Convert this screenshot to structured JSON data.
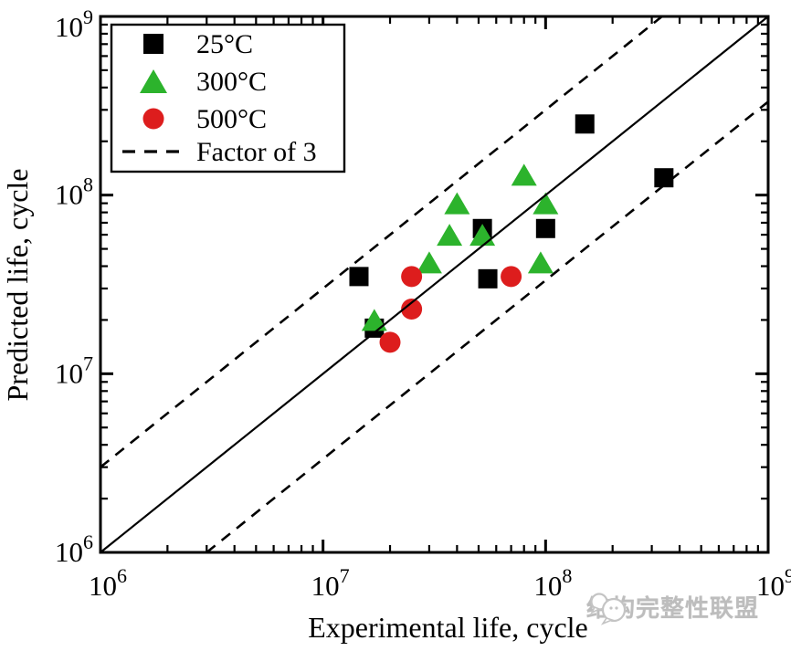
{
  "watermark": {
    "text": "结构完整性联盟",
    "icon": "speech-bubbles-logo",
    "color": "#bdbdbd"
  },
  "chart_data": {
    "type": "scatter",
    "title": "",
    "xlabel": "Experimental life, cycle",
    "ylabel": "Predicted life, cycle",
    "x_scale": "log",
    "y_scale": "log",
    "xlim": [
      1000000.0,
      1000000000.0
    ],
    "ylim": [
      1000000.0,
      1000000000.0
    ],
    "x_tick_labels": [
      "10⁶",
      "10⁷",
      "10⁸",
      "10⁹"
    ],
    "y_tick_labels": [
      "10⁶",
      "10⁷",
      "10⁸",
      "10⁹"
    ],
    "tick_exponents": [
      6,
      7,
      8,
      9
    ],
    "grid": false,
    "frame": "full-box-with-inward-ticks",
    "colors": {
      "series_25C": "#000000",
      "series_300C": "#2cb32c",
      "series_500C": "#dd1d1d",
      "lines": "#000000"
    },
    "series": [
      {
        "name": "25°C",
        "marker": "square",
        "color": "#000000",
        "points": [
          [
            14500000.0,
            35000000.0
          ],
          [
            17000000.0,
            18000000.0
          ],
          [
            52000000.0,
            65000000.0
          ],
          [
            55000000.0,
            34000000.0
          ],
          [
            100000000.0,
            65000000.0
          ],
          [
            150000000.0,
            250000000.0
          ],
          [
            340000000.0,
            125000000.0
          ]
        ]
      },
      {
        "name": "300°C",
        "marker": "triangle",
        "color": "#2cb32c",
        "points": [
          [
            17000000.0,
            20000000.0
          ],
          [
            30000000.0,
            42000000.0
          ],
          [
            37000000.0,
            60000000.0
          ],
          [
            40000000.0,
            90000000.0
          ],
          [
            52000000.0,
            60000000.0
          ],
          [
            80000000.0,
            130000000.0
          ],
          [
            95000000.0,
            42000000.0
          ],
          [
            100000000.0,
            90000000.0
          ]
        ]
      },
      {
        "name": "500°C",
        "marker": "circle",
        "color": "#dd1d1d",
        "points": [
          [
            20000000.0,
            15000000.0
          ],
          [
            25000000.0,
            23000000.0
          ],
          [
            25000000.0,
            35000000.0
          ],
          [
            70000000.0,
            35000000.0
          ]
        ]
      }
    ],
    "reference_lines": {
      "identity": {
        "style": "solid",
        "equation": "y = x"
      },
      "factor_band": {
        "style": "dashed",
        "factor": 3,
        "label": "Factor of 3"
      }
    },
    "legend": {
      "position": "top-left",
      "entries": [
        {
          "label": "25°C",
          "marker": "square"
        },
        {
          "label": "300°C",
          "marker": "triangle"
        },
        {
          "label": "500°C",
          "marker": "circle"
        },
        {
          "label": "Factor of 3",
          "marker": "dashed-line"
        }
      ]
    }
  }
}
